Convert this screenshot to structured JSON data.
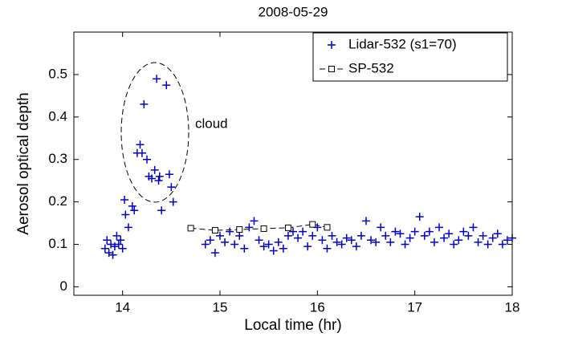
{
  "chart_data": {
    "type": "scatter",
    "title": "2008-05-29",
    "x_label": "Local time (hr)",
    "y_label": "Aerosol optical depth",
    "annotations": [
      "cloud"
    ],
    "xlim": [
      13.5,
      18
    ],
    "xticks": [
      14,
      15,
      16,
      17,
      18
    ],
    "ylim": [
      -0.02,
      0.6
    ],
    "yticks": [
      0,
      0.1,
      0.2,
      0.3,
      0.4,
      0.5
    ],
    "grid": false,
    "legend": "upper right",
    "series": [
      {
        "name": "Lidar-532 (s1=70)",
        "color": "#0000cc",
        "marker": "plus",
        "line_style": "none",
        "x": [
          13.82,
          13.84,
          13.86,
          13.88,
          13.9,
          13.92,
          13.94,
          13.96,
          13.98,
          14.0,
          14.02,
          14.03,
          14.06,
          14.1,
          14.12,
          14.15,
          14.18,
          14.2,
          14.22,
          14.25,
          14.27,
          14.3,
          14.33,
          14.35,
          14.37,
          14.4,
          14.45,
          14.48,
          14.5,
          14.52,
          14.38,
          14.85,
          14.9,
          14.95,
          15.0,
          15.05,
          15.1,
          15.15,
          15.2,
          15.25,
          15.3,
          15.35,
          15.4,
          15.45,
          15.5,
          15.55,
          15.6,
          15.65,
          15.7,
          15.75,
          15.8,
          15.85,
          15.9,
          15.95,
          16.0,
          16.05,
          16.1,
          16.15,
          16.2,
          16.25,
          16.3,
          16.35,
          16.4,
          16.45,
          16.5,
          16.55,
          16.6,
          16.65,
          16.7,
          16.75,
          16.8,
          16.85,
          16.9,
          16.95,
          17.0,
          17.05,
          17.1,
          17.15,
          17.2,
          17.25,
          17.3,
          17.35,
          17.4,
          17.45,
          17.5,
          17.55,
          17.6,
          17.65,
          17.7,
          17.75,
          17.8,
          17.85,
          17.9,
          17.95,
          18.0
        ],
        "values": [
          0.09,
          0.11,
          0.08,
          0.1,
          0.075,
          0.095,
          0.12,
          0.1,
          0.11,
          0.09,
          0.205,
          0.17,
          0.14,
          0.19,
          0.18,
          0.315,
          0.335,
          0.315,
          0.43,
          0.3,
          0.26,
          0.255,
          0.275,
          0.49,
          0.25,
          0.18,
          0.475,
          0.265,
          0.235,
          0.2,
          0.26,
          0.1,
          0.11,
          0.08,
          0.12,
          0.105,
          0.13,
          0.1,
          0.12,
          0.09,
          0.14,
          0.155,
          0.11,
          0.095,
          0.1,
          0.085,
          0.105,
          0.09,
          0.12,
          0.13,
          0.115,
          0.13,
          0.095,
          0.12,
          0.14,
          0.11,
          0.09,
          0.12,
          0.105,
          0.1,
          0.115,
          0.11,
          0.095,
          0.12,
          0.155,
          0.11,
          0.105,
          0.14,
          0.12,
          0.105,
          0.13,
          0.125,
          0.1,
          0.115,
          0.13,
          0.165,
          0.12,
          0.13,
          0.105,
          0.14,
          0.115,
          0.125,
          0.1,
          0.11,
          0.13,
          0.12,
          0.14,
          0.105,
          0.12,
          0.1,
          0.115,
          0.125,
          0.1,
          0.11,
          0.115
        ]
      },
      {
        "name": "SP-532",
        "color": "#000000",
        "marker": "square",
        "line_style": "dashed",
        "x": [
          14.7,
          14.95,
          15.2,
          15.45,
          15.7,
          15.95,
          16.1
        ],
        "values": [
          0.138,
          0.133,
          0.135,
          0.137,
          0.139,
          0.147,
          0.14
        ]
      }
    ]
  }
}
